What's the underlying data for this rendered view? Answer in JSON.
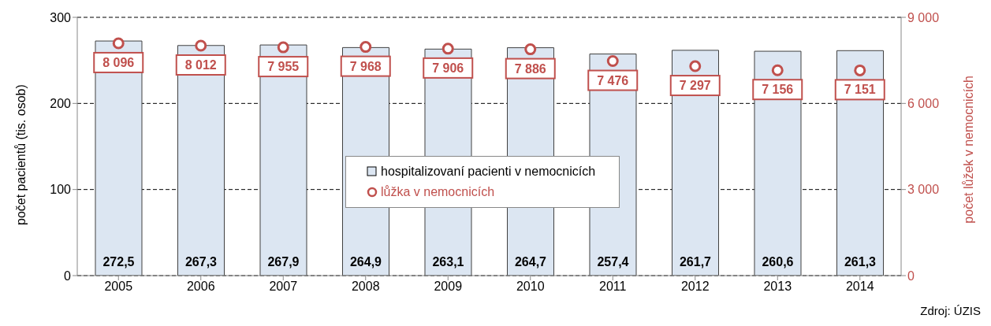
{
  "chart_data": {
    "type": "bar",
    "categories": [
      "2005",
      "2006",
      "2007",
      "2008",
      "2009",
      "2010",
      "2011",
      "2012",
      "2013",
      "2014"
    ],
    "ylabel": "počet pacientů (tis. osob)",
    "y2label": "počet lůžek v nemocnicích",
    "ylim": [
      0,
      300
    ],
    "yticks": [
      0,
      100,
      200,
      300
    ],
    "y2lim": [
      0,
      9000
    ],
    "y2ticks": [
      0,
      {
        "value": 3000,
        "label": "3 000"
      },
      {
        "value": 6000,
        "label": "6 000"
      },
      {
        "value": 9000,
        "label": "9 000"
      }
    ],
    "grid": "y",
    "legend": "center",
    "annotations": [
      "Zdroj: ÚZIS"
    ],
    "series": [
      {
        "name": "hospitalizovaní pacienti v nemocnicích",
        "color": "#dce6f2",
        "values": [
          272.5,
          267.3,
          267.9,
          264.9,
          263.1,
          264.7,
          257.4,
          261.7,
          260.6,
          261.3
        ],
        "value_labels": [
          "272,5",
          "267,3",
          "267,9",
          "264,9",
          "263,1",
          "264,7",
          "257,4",
          "261,7",
          "260,6",
          "261,3"
        ]
      },
      {
        "name": "lůžka v nemocnicích",
        "type": "scatter",
        "axis": "y2",
        "marker": "circle",
        "color": "#c0504d",
        "values": [
          8096,
          8012,
          7955,
          7968,
          7906,
          7886,
          7476,
          7297,
          7156,
          7151
        ],
        "value_labels": [
          "8 096",
          "8 012",
          "7 955",
          "7 968",
          "7 906",
          "7 886",
          "7 476",
          "7 297",
          "7 156",
          "7 151"
        ]
      }
    ]
  }
}
